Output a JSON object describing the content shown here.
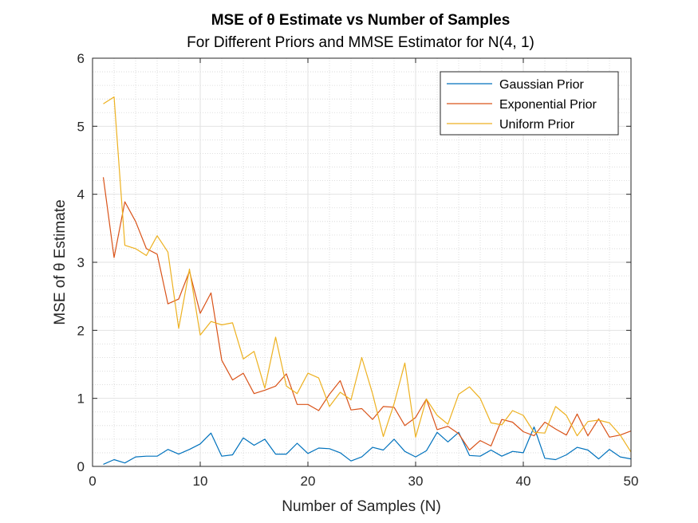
{
  "chart_data": {
    "type": "line",
    "title": "MSE of θ Estimate vs Number of Samples",
    "subtitle": "For Different Priors and MMSE Estimator for N(4, 1)",
    "xlabel": "Number of Samples (N)",
    "ylabel": "MSE of θ Estimate",
    "xlim": [
      0,
      50
    ],
    "ylim": [
      0,
      6
    ],
    "xticks": [
      0,
      10,
      20,
      30,
      40,
      50
    ],
    "yticks": [
      0,
      1,
      2,
      3,
      4,
      5,
      6
    ],
    "grid": true,
    "minor_grid": true,
    "legend_position": "top-right",
    "x": [
      1,
      2,
      3,
      4,
      5,
      6,
      7,
      8,
      9,
      10,
      11,
      12,
      13,
      14,
      15,
      16,
      17,
      18,
      19,
      20,
      21,
      22,
      23,
      24,
      25,
      26,
      27,
      28,
      29,
      30,
      31,
      32,
      33,
      34,
      35,
      36,
      37,
      38,
      39,
      40,
      41,
      42,
      43,
      44,
      45,
      46,
      47,
      48,
      49,
      50
    ],
    "series": [
      {
        "name": "Gaussian Prior",
        "color": "#0072BD",
        "values": [
          0.03,
          0.1,
          0.05,
          0.14,
          0.15,
          0.15,
          0.25,
          0.18,
          0.25,
          0.33,
          0.49,
          0.15,
          0.17,
          0.42,
          0.31,
          0.4,
          0.18,
          0.18,
          0.34,
          0.19,
          0.27,
          0.26,
          0.2,
          0.08,
          0.14,
          0.28,
          0.24,
          0.4,
          0.22,
          0.14,
          0.23,
          0.5,
          0.36,
          0.5,
          0.16,
          0.15,
          0.24,
          0.15,
          0.22,
          0.2,
          0.58,
          0.12,
          0.1,
          0.17,
          0.28,
          0.24,
          0.11,
          0.25,
          0.14,
          0.11
        ]
      },
      {
        "name": "Exponential Prior",
        "color": "#D95319",
        "values": [
          4.25,
          3.07,
          3.89,
          3.6,
          3.2,
          3.12,
          2.39,
          2.46,
          2.87,
          2.25,
          2.55,
          1.56,
          1.27,
          1.37,
          1.07,
          1.12,
          1.18,
          1.36,
          0.91,
          0.91,
          0.82,
          1.06,
          1.26,
          0.83,
          0.85,
          0.69,
          0.88,
          0.87,
          0.6,
          0.72,
          0.99,
          0.54,
          0.59,
          0.48,
          0.24,
          0.38,
          0.3,
          0.69,
          0.65,
          0.51,
          0.45,
          0.65,
          0.55,
          0.46,
          0.77,
          0.45,
          0.7,
          0.43,
          0.46,
          0.52
        ]
      },
      {
        "name": "Uniform Prior",
        "color": "#EDB120",
        "values": [
          5.33,
          5.43,
          3.25,
          3.2,
          3.1,
          3.39,
          3.15,
          2.03,
          2.9,
          1.93,
          2.13,
          2.08,
          2.11,
          1.58,
          1.69,
          1.15,
          1.9,
          1.18,
          1.07,
          1.37,
          1.3,
          0.88,
          1.09,
          0.98,
          1.6,
          1.07,
          0.44,
          0.92,
          1.52,
          0.43,
          0.99,
          0.75,
          0.62,
          1.06,
          1.17,
          1.0,
          0.64,
          0.61,
          0.82,
          0.75,
          0.5,
          0.49,
          0.88,
          0.75,
          0.45,
          0.66,
          0.68,
          0.64,
          0.46,
          0.21
        ]
      }
    ]
  }
}
